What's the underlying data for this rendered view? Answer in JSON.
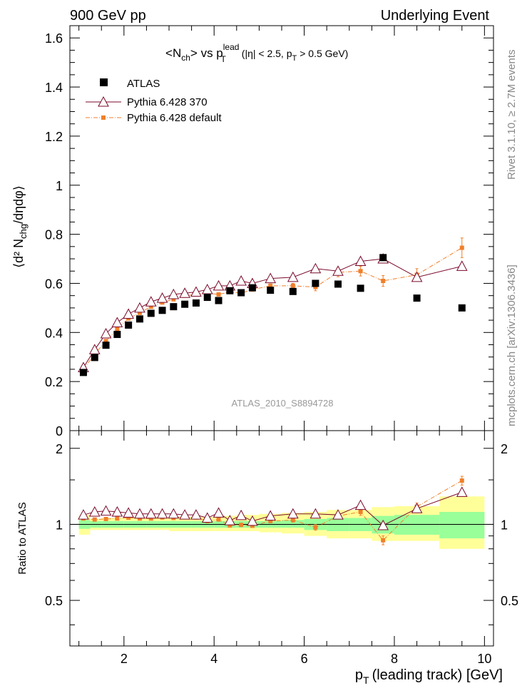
{
  "header": {
    "left": "900 GeV pp",
    "right": "Underlying Event"
  },
  "side_labels": {
    "rivet": "Rivet 3.1.10, ≥ 2.7M events",
    "mcplots": "mcplots.cern.ch [arXiv:1306.3436]"
  },
  "plot_title": {
    "n": "N",
    "n_sub": "ch",
    "vs": "vs p",
    "p_sup": "lead",
    "p_sub": "T",
    "cut": "(|η| < 2.5, p",
    "cut_sub": "T",
    "cut_end": "> 0.5 GeV)"
  },
  "analysis_label": "ATLAS_2010_S8894728",
  "axes": {
    "y_main": "⟨d² N",
    "y_main_sub": "chg",
    "y_main_end": "/dηdφ⟩",
    "y_ratio": "Ratio to ATLAS",
    "x": "p",
    "x_sub": "T",
    "x_end": "(leading track) [GeV]"
  },
  "colors": {
    "atlas": "#000000",
    "pythia370": "#7a0a2a",
    "pythiadef": "#f07f2a",
    "band_inner": "#99ff99",
    "band_outer": "#ffff99"
  },
  "chart_data": [
    {
      "type": "scatter",
      "panel": "main",
      "xlim": [
        0.8,
        10.2
      ],
      "ylim": [
        0,
        1.65
      ],
      "yticks": [
        0,
        0.2,
        0.4,
        0.6,
        0.8,
        1,
        1.2,
        1.4,
        1.6
      ],
      "ytick_labels": [
        "0",
        "0.2",
        "0.4",
        "0.6",
        "0.8",
        "1",
        "1.2",
        "1.4",
        "1.6"
      ],
      "legend_position": "top-left",
      "series": [
        {
          "name": "ATLAS",
          "marker": "filled-square",
          "x": [
            1.1,
            1.35,
            1.6,
            1.85,
            2.1,
            2.35,
            2.6,
            2.85,
            3.1,
            3.35,
            3.6,
            3.85,
            4.1,
            4.35,
            4.6,
            4.85,
            5.25,
            5.75,
            6.25,
            6.75,
            7.25,
            7.75,
            8.5,
            9.5
          ],
          "y": [
            0.237,
            0.298,
            0.348,
            0.392,
            0.43,
            0.455,
            0.478,
            0.49,
            0.505,
            0.515,
            0.52,
            0.543,
            0.53,
            0.57,
            0.562,
            0.582,
            0.572,
            0.567,
            0.6,
            0.597,
            0.58,
            0.705,
            0.54,
            0.5
          ]
        },
        {
          "name": "Pythia 6.428 370",
          "marker": "open-triangle",
          "x": [
            1.1,
            1.35,
            1.6,
            1.85,
            2.1,
            2.35,
            2.6,
            2.85,
            3.1,
            3.35,
            3.6,
            3.85,
            4.1,
            4.35,
            4.6,
            4.85,
            5.25,
            5.75,
            6.25,
            6.75,
            7.25,
            7.75,
            8.5,
            9.5
          ],
          "y": [
            0.257,
            0.33,
            0.395,
            0.44,
            0.475,
            0.5,
            0.525,
            0.54,
            0.555,
            0.56,
            0.565,
            0.575,
            0.59,
            0.59,
            0.61,
            0.6,
            0.62,
            0.625,
            0.66,
            0.65,
            0.69,
            0.7,
            0.625,
            0.67
          ]
        },
        {
          "name": "Pythia 6.428 default",
          "marker": "filled-small-square",
          "x": [
            1.1,
            1.35,
            1.6,
            1.85,
            2.1,
            2.35,
            2.6,
            2.85,
            3.1,
            3.35,
            3.6,
            3.85,
            4.1,
            4.35,
            4.6,
            4.85,
            5.25,
            5.75,
            6.25,
            6.75,
            7.25,
            7.75,
            8.5,
            9.5
          ],
          "y": [
            0.25,
            0.312,
            0.365,
            0.413,
            0.457,
            0.48,
            0.505,
            0.522,
            0.535,
            0.55,
            0.555,
            0.56,
            0.555,
            0.565,
            0.56,
            0.575,
            0.59,
            0.59,
            0.585,
            0.645,
            0.65,
            0.61,
            0.635,
            0.745
          ],
          "yerr": [
            0.005,
            0.005,
            0.005,
            0.005,
            0.005,
            0.005,
            0.005,
            0.005,
            0.005,
            0.005,
            0.005,
            0.005,
            0.005,
            0.005,
            0.005,
            0.005,
            0.008,
            0.01,
            0.015,
            0.018,
            0.02,
            0.022,
            0.025,
            0.04
          ]
        }
      ]
    },
    {
      "type": "scatter",
      "panel": "ratio",
      "ylabel": "Ratio to ATLAS",
      "xlabel": "p_T (leading track) [GeV]",
      "xlim": [
        0.8,
        10.2
      ],
      "ylim": [
        0.33,
        2.35
      ],
      "log_y": true,
      "xticks": [
        2,
        4,
        6,
        8,
        10
      ],
      "xtick_labels": [
        "2",
        "4",
        "6",
        "8",
        "10"
      ],
      "yticks": [
        0.5,
        1,
        2
      ],
      "ytick_labels": [
        "0.5",
        "1",
        "2"
      ],
      "uncertainty_band": {
        "x_edges": [
          1.0,
          1.25,
          1.5,
          2.0,
          2.5,
          3.0,
          3.5,
          4.0,
          4.5,
          5.0,
          5.5,
          6.0,
          6.5,
          7.0,
          7.5,
          8.0,
          9.0,
          10.0
        ],
        "inner_low": [
          0.96,
          0.97,
          0.97,
          0.97,
          0.97,
          0.97,
          0.97,
          0.97,
          0.97,
          0.97,
          0.97,
          0.95,
          0.94,
          0.94,
          0.92,
          0.91,
          0.88
        ],
        "inner_high": [
          1.04,
          1.03,
          1.03,
          1.03,
          1.03,
          1.03,
          1.03,
          1.03,
          1.03,
          1.03,
          1.04,
          1.05,
          1.06,
          1.06,
          1.08,
          1.09,
          1.12
        ],
        "outer_low": [
          0.91,
          0.95,
          0.95,
          0.95,
          0.95,
          0.94,
          0.94,
          0.94,
          0.94,
          0.93,
          0.92,
          0.9,
          0.88,
          0.88,
          0.86,
          0.86,
          0.8
        ],
        "outer_high": [
          1.09,
          1.05,
          1.06,
          1.06,
          1.06,
          1.07,
          1.07,
          1.08,
          1.09,
          1.1,
          1.11,
          1.12,
          1.14,
          1.14,
          1.17,
          1.18,
          1.29
        ]
      },
      "series": [
        {
          "name": "Pythia 6.428 370",
          "x": [
            1.1,
            1.35,
            1.6,
            1.85,
            2.1,
            2.35,
            2.6,
            2.85,
            3.1,
            3.35,
            3.6,
            3.85,
            4.1,
            4.35,
            4.6,
            4.85,
            5.25,
            5.75,
            6.25,
            6.75,
            7.25,
            7.75,
            8.5,
            9.5
          ],
          "y": [
            1.09,
            1.12,
            1.13,
            1.12,
            1.11,
            1.1,
            1.1,
            1.1,
            1.1,
            1.09,
            1.09,
            1.06,
            1.11,
            1.035,
            1.085,
            1.03,
            1.08,
            1.1,
            1.1,
            1.09,
            1.19,
            0.99,
            1.155,
            1.34
          ]
        },
        {
          "name": "Pythia 6.428 default",
          "x": [
            1.1,
            1.35,
            1.6,
            1.85,
            2.1,
            2.35,
            2.6,
            2.85,
            3.1,
            3.35,
            3.6,
            3.85,
            4.1,
            4.35,
            4.6,
            4.85,
            5.25,
            5.75,
            6.25,
            6.75,
            7.25,
            7.75,
            8.5,
            9.5
          ],
          "y": [
            1.055,
            1.045,
            1.05,
            1.055,
            1.063,
            1.055,
            1.055,
            1.065,
            1.06,
            1.07,
            1.065,
            1.03,
            1.045,
            0.99,
            0.995,
            0.987,
            1.03,
            1.04,
            0.973,
            1.08,
            1.12,
            0.865,
            1.175,
            1.49
          ],
          "yerr": [
            0.01,
            0.01,
            0.01,
            0.01,
            0.01,
            0.01,
            0.01,
            0.01,
            0.01,
            0.01,
            0.01,
            0.01,
            0.01,
            0.01,
            0.01,
            0.01,
            0.015,
            0.02,
            0.025,
            0.03,
            0.035,
            0.035,
            0.04,
            0.06
          ]
        }
      ]
    }
  ]
}
